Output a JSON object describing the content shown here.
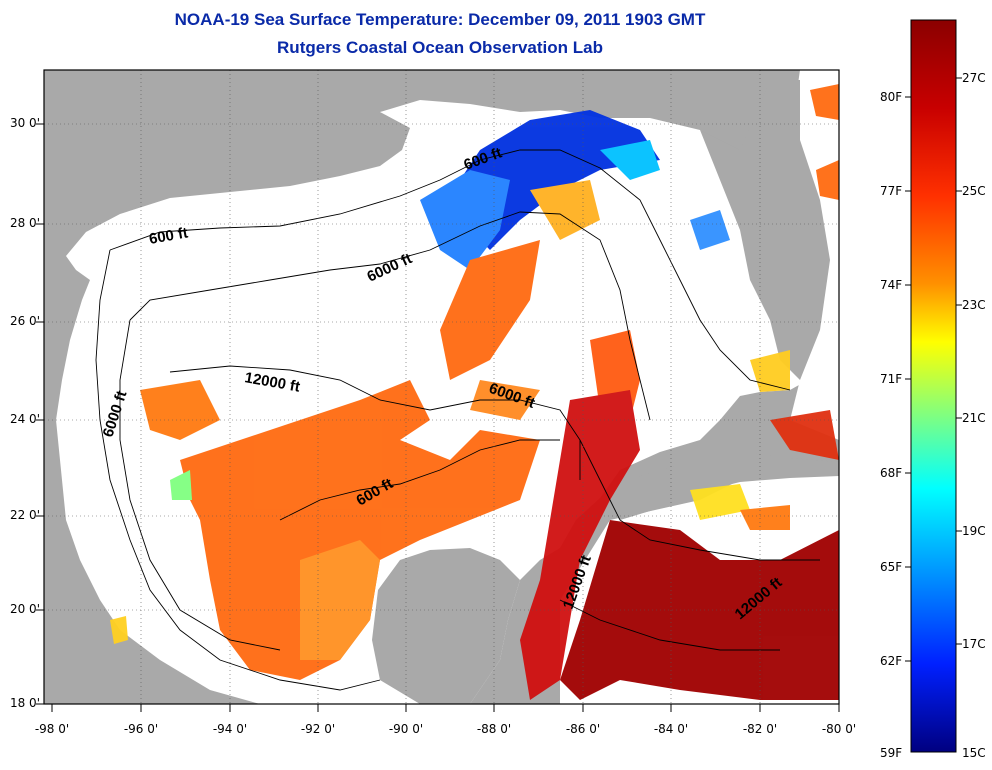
{
  "title": "NOAA-19 Sea Surface Temperature:  December 09, 2011 1903 GMT",
  "subtitle": "Rutgers Coastal Ocean Observation Lab",
  "axes": {
    "lat_labels": [
      "30 0'",
      "28 0'",
      "26 0'",
      "24 0'",
      "22 0'",
      "20 0'",
      "18 0'"
    ],
    "lon_labels": [
      "-98 0'",
      "-96 0'",
      "-94 0'",
      "-92 0'",
      "-90 0'",
      "-88 0'",
      "-86 0'",
      "-84 0'",
      "-82 0'",
      "-80 0'"
    ]
  },
  "contour_labels": [
    "600 ft",
    "600 ft",
    "6000 ft",
    "6000 ft",
    "12000 ft",
    "6000 ft",
    "600 ft",
    "12000 ft",
    "12000 ft"
  ],
  "colorbar": {
    "fahrenheit_labels": [
      "80F",
      "77F",
      "74F",
      "71F",
      "68F",
      "65F",
      "62F",
      "59F"
    ],
    "celsius_labels": [
      "27C",
      "25C",
      "23C",
      "21C",
      "19C",
      "17C",
      "15C"
    ],
    "colors": [
      "#8b0000",
      "#c00000",
      "#ff2000",
      "#ff6a00",
      "#ffb000",
      "#ffff00",
      "#90ff60",
      "#00ffff",
      "#0090ff",
      "#0020ff",
      "#00008b"
    ]
  },
  "colors": {
    "land": "#a9a9a9",
    "ocean_no_data": "#ffffff",
    "title": "#0a2aa8"
  }
}
